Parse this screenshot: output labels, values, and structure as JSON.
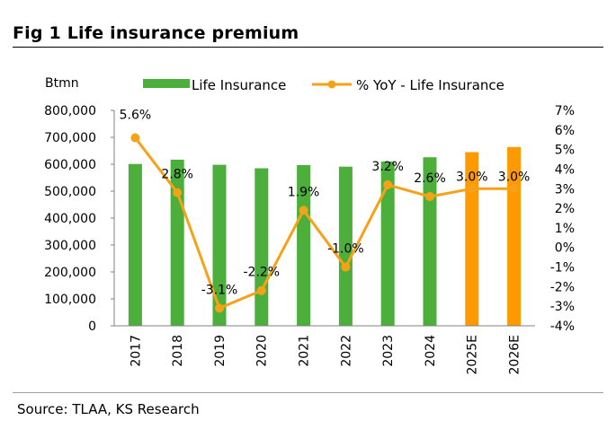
{
  "figure": {
    "title": "Fig 1  Life insurance premium",
    "source": "Source: TLAA, KS Research"
  },
  "chart_data": {
    "type": "bar",
    "categories": [
      "2017",
      "2018",
      "2019",
      "2020",
      "2021",
      "2022",
      "2023",
      "2024",
      "2025E",
      "2026E"
    ],
    "y_unit_label": "Btmn",
    "ylim": [
      0,
      800000
    ],
    "y_ticks": [
      "0",
      "100,000",
      "200,000",
      "300,000",
      "400,000",
      "500,000",
      "600,000",
      "700,000",
      "800,000"
    ],
    "y2lim": [
      -4,
      7
    ],
    "y2_ticks": [
      "-4%",
      "-3%",
      "-2%",
      "-1%",
      "0%",
      "1%",
      "2%",
      "3%",
      "4%",
      "5%",
      "6%",
      "7%"
    ],
    "series": [
      {
        "name": "Life Insurance",
        "type": "bar",
        "axis": "left",
        "values": [
          601000,
          617000,
          598000,
          585000,
          597000,
          591000,
          610000,
          626000,
          645000,
          664000
        ],
        "colors": [
          "#4caf3c",
          "#4caf3c",
          "#4caf3c",
          "#4caf3c",
          "#4caf3c",
          "#4caf3c",
          "#4caf3c",
          "#4caf3c",
          "#ff9900",
          "#ff9900"
        ]
      },
      {
        "name": "% YoY - Life Insurance",
        "type": "line",
        "axis": "right",
        "values": [
          5.6,
          2.8,
          -3.1,
          -2.2,
          1.9,
          -1.0,
          3.2,
          2.6,
          3.0,
          3.0
        ],
        "labels": [
          "5.6%",
          "2.8%",
          "-3.1%",
          "-2.2%",
          "1.9%",
          "-1.0%",
          "3.2%",
          "2.6%",
          "3.0%",
          "3.0%"
        ],
        "color": "#f5a219"
      }
    ],
    "grid": false,
    "legend_position": "top"
  }
}
